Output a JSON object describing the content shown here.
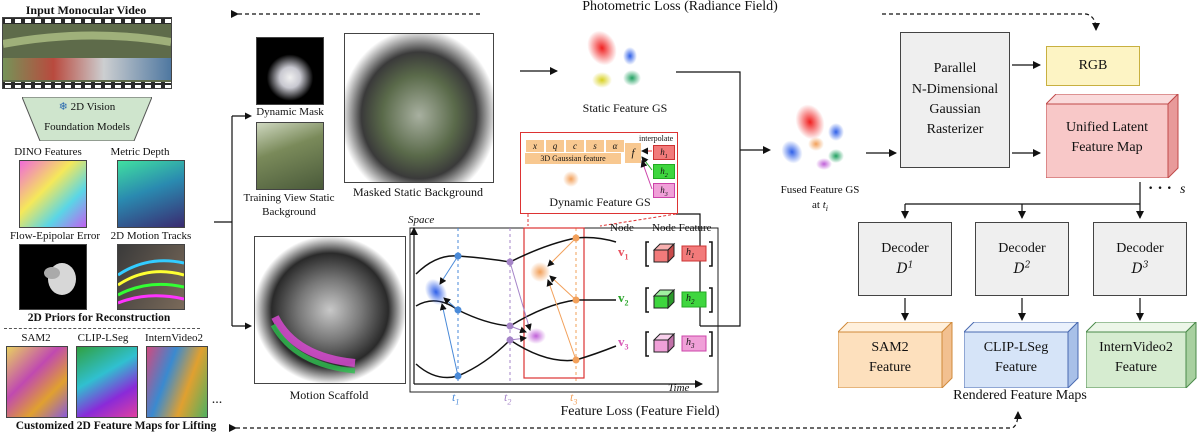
{
  "left": {
    "input_title": "Input Monocular Video",
    "vfm_line1": "2D Vision",
    "vfm_line2": "Foundation Models",
    "dino": "DINO Features",
    "metric_depth": "Metric Depth",
    "flow_epipolar": "Flow-Epipolar Error",
    "motion_tracks": "2D Motion Tracks",
    "priors_title": "2D Priors for Reconstruction",
    "sam2": "SAM2",
    "clip_lseg": "CLIP-LSeg",
    "internvideo2": "InternVideo2",
    "ellipsis": "...",
    "custom_title": "Customized 2D Feature Maps for Lifting"
  },
  "top_loss": "Photometric Loss (Radiance Field)",
  "bottom_loss": "Feature Loss (Feature Field)",
  "middle": {
    "dynamic_mask": "Dynamic Mask",
    "training_view_line1": "Training View Static",
    "training_view_line2": "Background",
    "masked_static": "Masked Static Background",
    "static_gs": "Static Feature GS",
    "motion_scaffold": "Motion Scaffold"
  },
  "dyn": {
    "cells": [
      "x",
      "q",
      "c",
      "s",
      "α"
    ],
    "gauss_label": "3D Gaussian feature",
    "f": "f",
    "interpolate": "interpolate",
    "h_labels": [
      "h",
      "h",
      "h"
    ],
    "h_subs": [
      "1",
      "2",
      "3"
    ],
    "title": "Dynamic Feature GS"
  },
  "scaffold": {
    "space": "Space",
    "time": "Time",
    "node_hdr": "Node",
    "feature_hdr": "Node Feature",
    "nodes": [
      "v",
      "v",
      "v"
    ],
    "node_subs": [
      "1",
      "2",
      "3"
    ],
    "t_labels": [
      "t",
      "t",
      "t"
    ],
    "t_subs": [
      "1",
      "2",
      "3"
    ]
  },
  "fused": {
    "line1": "Fused Feature GS",
    "line2": "at",
    "t": "t",
    "sub": "i"
  },
  "rasterizer": [
    "Parallel",
    "N-Dimensional",
    "Gaussian",
    "Rasterizer"
  ],
  "rgb": "RGB",
  "latent": [
    "Unified Latent",
    "Feature Map"
  ],
  "dots": "· · ·",
  "s": "s",
  "decoders": [
    {
      "label": "Decoder",
      "sym": "D",
      "sup": "1"
    },
    {
      "label": "Decoder",
      "sym": "D",
      "sup": "2"
    },
    {
      "label": "Decoder",
      "sym": "D",
      "sup": "3"
    }
  ],
  "outputs": [
    {
      "l1": "SAM2",
      "l2": "Feature"
    },
    {
      "l1": "CLIP-LSeg",
      "l2": "Feature"
    },
    {
      "l1": "InternVideo2",
      "l2": "Feature"
    }
  ],
  "rendered": "Rendered Feature Maps",
  "colors": {
    "node1": "#e8505e",
    "node2": "#2aa52a",
    "node3": "#d858b4",
    "t1": "#4a8ad8",
    "t2": "#a584c8",
    "t3": "#f2a05a",
    "rgb_fill": "#fdf4c4",
    "latent_fill": "#f8c8c8",
    "sam2_fill": "#fde0bd",
    "clip_fill": "#d6e4f8",
    "intern_fill": "#d6ecd0"
  }
}
